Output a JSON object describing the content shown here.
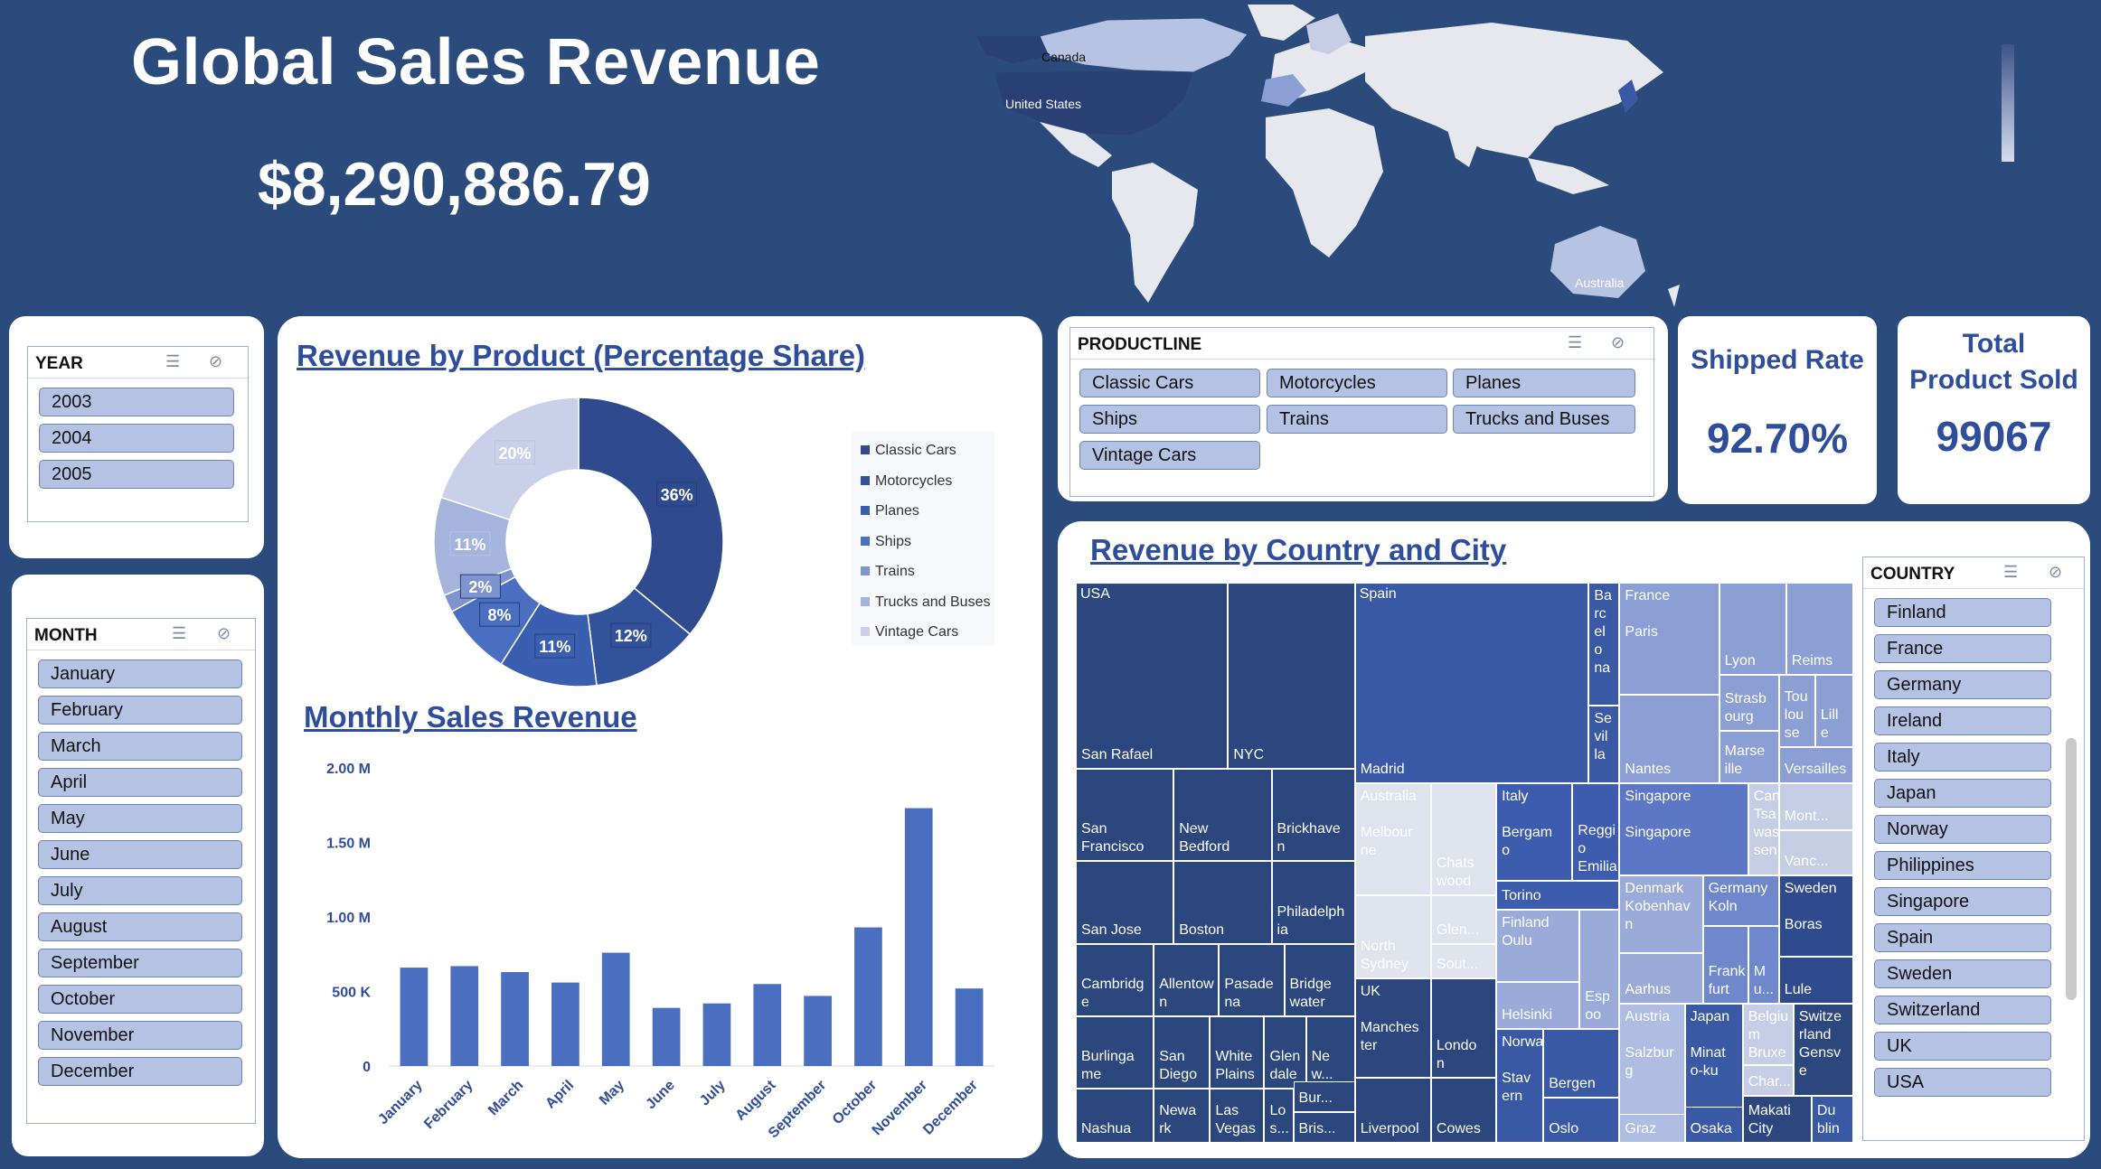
{
  "header": {
    "title": "Global Sales Revenue",
    "total": "$8,290,886.79"
  },
  "map": {
    "labels": [
      "Canada",
      "United States",
      "Australia"
    ]
  },
  "year_slicer": {
    "title": "YEAR",
    "items": [
      "2003",
      "2004",
      "2005"
    ]
  },
  "month_slicer": {
    "title": "MONTH",
    "items": [
      "January",
      "February",
      "March",
      "April",
      "May",
      "June",
      "July",
      "August",
      "September",
      "October",
      "November",
      "December"
    ]
  },
  "product_slicer": {
    "title": "PRODUCTLINE",
    "items": [
      "Classic Cars",
      "Motorcycles",
      "Planes",
      "Ships",
      "Trains",
      "Trucks and Buses",
      "Vintage Cars"
    ]
  },
  "country_slicer": {
    "title": "COUNTRY",
    "items": [
      "Finland",
      "France",
      "Germany",
      "Ireland",
      "Italy",
      "Japan",
      "Norway",
      "Philippines",
      "Singapore",
      "Spain",
      "Sweden",
      "Switzerland",
      "UK",
      "USA"
    ]
  },
  "kpi": {
    "shipped_title": "Shipped Rate",
    "shipped_value": "92.70%",
    "sold_title_1": "Total",
    "sold_title_2": "Product Sold",
    "sold_value": "99067"
  },
  "donut": {
    "title": "Revenue by Product (Percentage Share)",
    "legend": [
      "Classic Cars",
      "Motorcycles",
      "Planes",
      "Ships",
      "Trains",
      "Trucks and Buses",
      "Vintage Cars"
    ]
  },
  "bar": {
    "title": "Monthly Sales Revenue"
  },
  "treemap": {
    "title": "Revenue by Country and City"
  },
  "colors": {
    "background": "#2b4b7c",
    "accent": "#2e4d9a",
    "button": "#b4c3e4"
  },
  "chart_data": [
    {
      "type": "pie",
      "categories": [
        "Classic Cars",
        "Motorcycles",
        "Planes",
        "Ships",
        "Trains",
        "Trucks and Buses",
        "Vintage Cars"
      ],
      "values": [
        36,
        12,
        11,
        8,
        2,
        11,
        20
      ],
      "labels": [
        "36%",
        "12%",
        "11%",
        "8%",
        "2%",
        "11%",
        "20%"
      ],
      "colors": [
        "#2f4b8e",
        "#32529b",
        "#3a5fb0",
        "#4a6ec0",
        "#7d94cf",
        "#a4b4dd",
        "#c9d1ea"
      ],
      "title": "Revenue by Product (Percentage Share)",
      "legend": "right"
    },
    {
      "type": "bar",
      "title": "Monthly Sales Revenue",
      "categories": [
        "January",
        "February",
        "March",
        "April",
        "May",
        "June",
        "July",
        "August",
        "September",
        "October",
        "November",
        "December"
      ],
      "values": [
        660000,
        670000,
        630000,
        560000,
        760000,
        390000,
        420000,
        550000,
        470000,
        930000,
        1730000,
        520000
      ],
      "ylim": [
        0,
        2000000
      ],
      "yticks": [
        0,
        500000,
        1000000,
        1500000,
        2000000
      ],
      "ytick_labels": [
        "0",
        "500 K",
        "1.00 M",
        "1.50 M",
        "2.00 M"
      ],
      "color": "#4a6ec0",
      "grid": false
    },
    {
      "type": "treemap",
      "title": "Revenue by Country and City",
      "countries": [
        "USA",
        "Spain",
        "France",
        "Australia",
        "Italy",
        "Singapore",
        "Canada",
        "UK",
        "Finland",
        "Denmark",
        "Germany",
        "Sweden",
        "Norway",
        "Austria",
        "Japan",
        "Belgium",
        "Switzerland",
        "Philippines",
        "Ireland"
      ],
      "cells": [
        {
          "country": "USA",
          "city": "San Rafael",
          "color": "#2c467e"
        },
        {
          "country": "USA",
          "city": "NYC",
          "color": "#2c467e"
        },
        {
          "country": "USA",
          "city": "San Francisco",
          "color": "#2c467e"
        },
        {
          "country": "USA",
          "city": "New Bedford",
          "color": "#2c467e"
        },
        {
          "country": "USA",
          "city": "Brickhaven",
          "color": "#2c467e"
        },
        {
          "country": "USA",
          "city": "San Jose",
          "color": "#2c467e"
        },
        {
          "country": "USA",
          "city": "Boston",
          "color": "#2c467e"
        },
        {
          "country": "USA",
          "city": "Philadelphia",
          "color": "#2c467e"
        },
        {
          "country": "USA",
          "city": "Cambridge",
          "color": "#2c467e"
        },
        {
          "country": "USA",
          "city": "Allentown",
          "color": "#2c467e"
        },
        {
          "country": "USA",
          "city": "Pasadena",
          "color": "#2c467e"
        },
        {
          "country": "USA",
          "city": "Bridgewater",
          "color": "#2c467e"
        },
        {
          "country": "USA",
          "city": "Burlingame",
          "color": "#2c467e"
        },
        {
          "country": "USA",
          "city": "San Diego",
          "color": "#2c467e"
        },
        {
          "country": "USA",
          "city": "White Plains",
          "color": "#2c467e"
        },
        {
          "country": "USA",
          "city": "Glendale",
          "color": "#2c467e"
        },
        {
          "country": "USA",
          "city": "New Haven",
          "color": "#2c467e"
        },
        {
          "country": "USA",
          "city": "Burbank",
          "color": "#2c467e"
        },
        {
          "country": "USA",
          "city": "Nashua",
          "color": "#2c467e"
        },
        {
          "country": "USA",
          "city": "Newark",
          "color": "#2c467e"
        },
        {
          "country": "USA",
          "city": "Las Vegas",
          "color": "#2c467e"
        },
        {
          "country": "USA",
          "city": "Los Angeles",
          "color": "#2c467e"
        },
        {
          "country": "USA",
          "city": "Brisbane",
          "color": "#2c467e"
        },
        {
          "country": "Spain",
          "city": "Madrid",
          "color": "#3a59a5"
        },
        {
          "country": "Spain",
          "city": "Barcelona",
          "color": "#3a59a5"
        },
        {
          "country": "Spain",
          "city": "Sevilla",
          "color": "#3a59a5"
        },
        {
          "country": "France",
          "city": "Paris",
          "color": "#8b9fd4"
        },
        {
          "country": "France",
          "city": "Nantes",
          "color": "#8b9fd4"
        },
        {
          "country": "France",
          "city": "Lyon",
          "color": "#8b9fd4"
        },
        {
          "country": "France",
          "city": "Reims",
          "color": "#8b9fd4"
        },
        {
          "country": "France",
          "city": "Strasbourg",
          "color": "#8b9fd4"
        },
        {
          "country": "France",
          "city": "Toulouse",
          "color": "#8b9fd4"
        },
        {
          "country": "France",
          "city": "Lille",
          "color": "#8b9fd4"
        },
        {
          "country": "France",
          "city": "Marseille",
          "color": "#8b9fd4"
        },
        {
          "country": "France",
          "city": "Versailles",
          "color": "#8b9fd4"
        },
        {
          "country": "Australia",
          "city": "Melbourne",
          "color": "#dfe3ee"
        },
        {
          "country": "Australia",
          "city": "Chatswood",
          "color": "#dfe3ee"
        },
        {
          "country": "Australia",
          "city": "North Sydney",
          "color": "#dfe3ee"
        },
        {
          "country": "Australia",
          "city": "Glen Waverly",
          "color": "#dfe3ee"
        },
        {
          "country": "Australia",
          "city": "South Brisbane",
          "color": "#dfe3ee"
        },
        {
          "country": "Italy",
          "city": "Bergamo",
          "color": "#3d5cae"
        },
        {
          "country": "Italy",
          "city": "Reggio Emilia",
          "color": "#3d5cae"
        },
        {
          "country": "Italy",
          "city": "Torino",
          "color": "#3d5cae"
        },
        {
          "country": "Singapore",
          "city": "Singapore",
          "color": "#5b77c5"
        },
        {
          "country": "Canada",
          "city": "Tsawassen",
          "color": "#c6cee5"
        },
        {
          "country": "Canada",
          "city": "Montreal",
          "color": "#c6cee5"
        },
        {
          "country": "Canada",
          "city": "Vancouver",
          "color": "#c6cee5"
        },
        {
          "country": "UK",
          "city": "Manchester",
          "color": "#2c467e"
        },
        {
          "country": "UK",
          "city": "London",
          "color": "#2c467e"
        },
        {
          "country": "UK",
          "city": "Liverpool",
          "color": "#2c467e"
        },
        {
          "country": "UK",
          "city": "Cowes",
          "color": "#2c467e"
        },
        {
          "country": "Finland",
          "city": "Oulu",
          "color": "#9aabd9"
        },
        {
          "country": "Finland",
          "city": "Helsinki",
          "color": "#9aabd9"
        },
        {
          "country": "Finland",
          "city": "Espoo",
          "color": "#9aabd9"
        },
        {
          "country": "Denmark",
          "city": "Kobenhavn",
          "color": "#9aabd9"
        },
        {
          "country": "Denmark",
          "city": "Aarhus",
          "color": "#9aabd9"
        },
        {
          "country": "Germany",
          "city": "Koln",
          "color": "#6f88cc"
        },
        {
          "country": "Germany",
          "city": "Frankfurt",
          "color": "#6f88cc"
        },
        {
          "country": "Germany",
          "city": "Munich",
          "color": "#6f88cc"
        },
        {
          "country": "Sweden",
          "city": "Boras",
          "color": "#2f4b8e"
        },
        {
          "country": "Sweden",
          "city": "Lule",
          "color": "#2f4b8e"
        },
        {
          "country": "Norway",
          "city": "Bergen",
          "color": "#3a59a5"
        },
        {
          "country": "Norway",
          "city": "Stavern",
          "color": "#3a59a5"
        },
        {
          "country": "Norway",
          "city": "Oslo",
          "color": "#3a59a5"
        },
        {
          "country": "Austria",
          "city": "Salzburg",
          "color": "#afbde2"
        },
        {
          "country": "Austria",
          "city": "Graz",
          "color": "#afbde2"
        },
        {
          "country": "Japan",
          "city": "Minato-ku",
          "color": "#3a59a5"
        },
        {
          "country": "Japan",
          "city": "Osaka",
          "color": "#3a59a5"
        },
        {
          "country": "Belgium",
          "city": "Bruxelles",
          "color": "#c6cee5"
        },
        {
          "country": "Belgium",
          "city": "Charleroi",
          "color": "#c6cee5"
        },
        {
          "country": "Switzerland",
          "city": "Genseve",
          "color": "#2c467e"
        },
        {
          "country": "Philippines",
          "city": "Makati City",
          "color": "#2c467e"
        },
        {
          "country": "Ireland",
          "city": "Dublin",
          "color": "#3a59a5"
        }
      ]
    }
  ]
}
